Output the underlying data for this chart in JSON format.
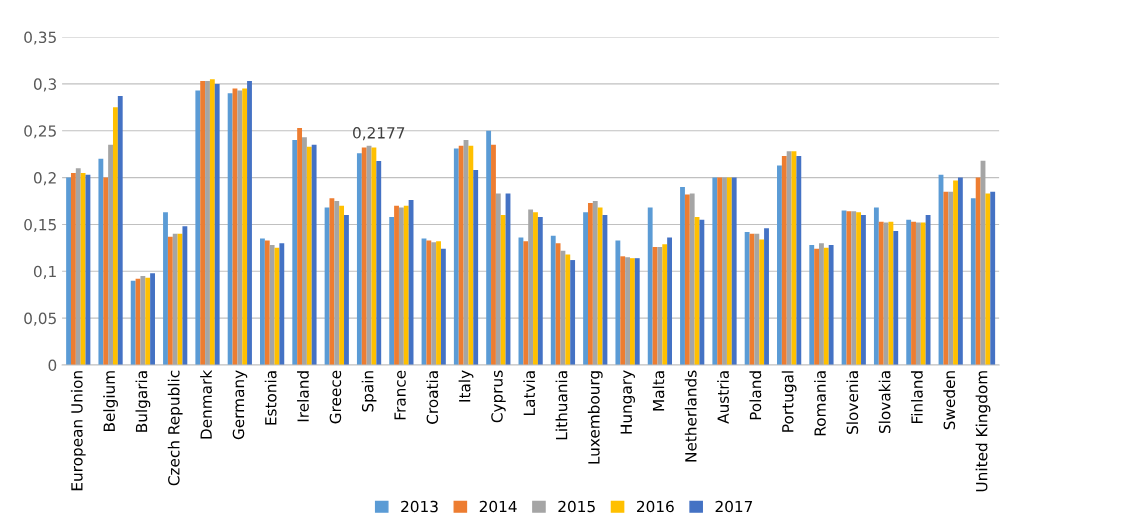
{
  "chart_data": {
    "type": "bar",
    "categories": [
      "European Union",
      "Belgium",
      "Bulgaria",
      "Czech Republic",
      "Denmark",
      "Germany",
      "Estonia",
      "Ireland",
      "Greece",
      "Spain",
      "France",
      "Croatia",
      "Italy",
      "Cyprus",
      "Latvia",
      "Lithuania",
      "Luxembourg",
      "Hungary",
      "Malta",
      "Netherlands",
      "Austria",
      "Poland",
      "Portugal",
      "Romania",
      "Slovenia",
      "Slovakia",
      "Finland",
      "Sweden",
      "United Kingdom"
    ],
    "series": [
      {
        "name": "2013",
        "color": "#5b9bd5",
        "values": [
          0.2,
          0.22,
          0.09,
          0.163,
          0.293,
          0.29,
          0.135,
          0.24,
          0.168,
          0.226,
          0.158,
          0.135,
          0.231,
          0.25,
          0.136,
          0.138,
          0.163,
          0.133,
          0.168,
          0.19,
          0.2,
          0.142,
          0.213,
          0.128,
          0.165,
          0.168,
          0.155,
          0.203,
          0.178
        ]
      },
      {
        "name": "2014",
        "color": "#ed7d31",
        "values": [
          0.205,
          0.2,
          0.092,
          0.137,
          0.303,
          0.295,
          0.133,
          0.253,
          0.178,
          0.232,
          0.17,
          0.133,
          0.234,
          0.235,
          0.132,
          0.13,
          0.173,
          0.116,
          0.126,
          0.182,
          0.2,
          0.14,
          0.223,
          0.124,
          0.164,
          0.153,
          0.153,
          0.185,
          0.2
        ]
      },
      {
        "name": "2015",
        "color": "#a5a5a5",
        "values": [
          0.21,
          0.235,
          0.095,
          0.14,
          0.303,
          0.293,
          0.128,
          0.243,
          0.175,
          0.234,
          0.168,
          0.131,
          0.24,
          0.183,
          0.166,
          0.122,
          0.175,
          0.115,
          0.126,
          0.183,
          0.2,
          0.14,
          0.228,
          0.13,
          0.164,
          0.152,
          0.152,
          0.185,
          0.218
        ]
      },
      {
        "name": "2016",
        "color": "#ffc000",
        "values": [
          0.205,
          0.275,
          0.093,
          0.14,
          0.305,
          0.295,
          0.125,
          0.233,
          0.17,
          0.232,
          0.17,
          0.132,
          0.234,
          0.16,
          0.163,
          0.118,
          0.168,
          0.114,
          0.129,
          0.158,
          0.2,
          0.134,
          0.228,
          0.125,
          0.163,
          0.153,
          0.152,
          0.197,
          0.183
        ]
      },
      {
        "name": "2017",
        "color": "#4472c4",
        "values": [
          0.203,
          0.287,
          0.098,
          0.148,
          0.3,
          0.303,
          0.13,
          0.235,
          0.16,
          0.2177,
          0.176,
          0.124,
          0.208,
          0.183,
          0.158,
          0.112,
          0.16,
          0.114,
          0.136,
          0.155,
          0.2,
          0.146,
          0.223,
          0.128,
          0.16,
          0.143,
          0.16,
          0.2,
          0.185
        ],
        "value_labels": [
          null,
          null,
          null,
          null,
          null,
          null,
          null,
          null,
          null,
          "0,2177",
          null,
          null,
          null,
          null,
          null,
          null,
          null,
          null,
          null,
          null,
          null,
          null,
          null,
          null,
          null,
          null,
          null,
          null,
          null
        ]
      }
    ],
    "ylim": [
      0,
      0.35
    ],
    "yticks": [
      {
        "value": 0,
        "label": "0"
      },
      {
        "value": 0.05,
        "label": "0,05"
      },
      {
        "value": 0.1,
        "label": "0,1"
      },
      {
        "value": 0.15,
        "label": "0,15"
      },
      {
        "value": 0.2,
        "label": "0,2"
      },
      {
        "value": 0.25,
        "label": "0,25"
      },
      {
        "value": 0.3,
        "label": "0,3"
      },
      {
        "value": 0.35,
        "label": "0,35"
      }
    ],
    "grid": "y",
    "legend": "bottom"
  }
}
